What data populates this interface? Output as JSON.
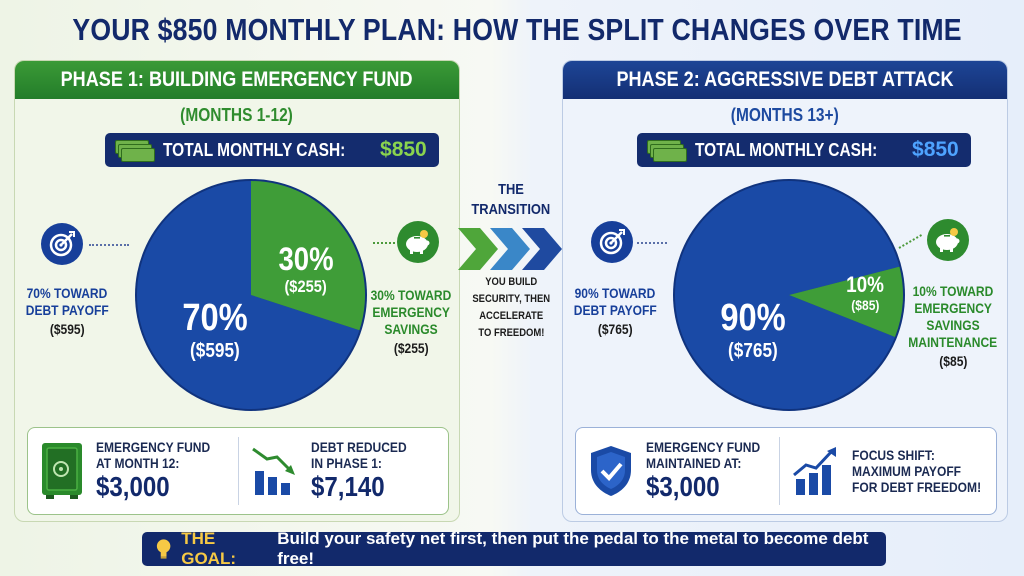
{
  "title": "YOUR $850 MONTHLY PLAN: HOW THE SPLIT CHANGES OVER TIME",
  "phase1": {
    "header": "PHASE 1: BUILDING EMERGENCY FUND",
    "subheader": "(MONTHS 1-12)",
    "cash_label": "TOTAL MONTHLY CASH:",
    "cash_amount": "$850",
    "pie": {
      "slices": [
        {
          "percent": 70,
          "pct_label": "70%",
          "amount": "($595)",
          "color": "#1a4aa6"
        },
        {
          "percent": 30,
          "pct_label": "30%",
          "amount": "($255)",
          "color": "#3f9d38"
        }
      ]
    },
    "left_label": {
      "line1": "70% TOWARD",
      "line2": "DEBT PAYOFF",
      "value": "($595)"
    },
    "right_label": {
      "line1": "30% TOWARD",
      "line2": "EMERGENCY",
      "line3": "SAVINGS",
      "value": "($255)"
    },
    "stat1": {
      "label1": "EMERGENCY FUND",
      "label2": "AT MONTH 12:",
      "value": "$3,000",
      "icon": "safe-icon"
    },
    "stat2": {
      "label1": "DEBT REDUCED",
      "label2": "IN PHASE 1:",
      "value": "$7,140",
      "icon": "bar-chart-down-icon"
    }
  },
  "transition": {
    "title1": "THE",
    "title2": "TRANSITION",
    "desc1": "YOU BUILD",
    "desc2": "SECURITY, THEN",
    "desc3": "ACCELERATE",
    "desc4": "TO FREEDOM!"
  },
  "phase2": {
    "header": "PHASE 2: AGGRESSIVE DEBT ATTACK",
    "subheader": "(MONTHS 13+)",
    "cash_label": "TOTAL MONTHLY CASH:",
    "cash_amount": "$850",
    "pie": {
      "slices": [
        {
          "percent": 90,
          "pct_label": "90%",
          "amount": "($765)",
          "color": "#1a4aa6"
        },
        {
          "percent": 10,
          "pct_label": "10%",
          "amount": "($85)",
          "color": "#3f9d38"
        }
      ]
    },
    "left_label": {
      "line1": "90% TOWARD",
      "line2": "DEBT PAYOFF",
      "value": "($765)"
    },
    "right_label": {
      "line1": "10% TOWARD",
      "line2": "EMERGENCY",
      "line3": "SAVINGS",
      "line4": "MAINTENANCE",
      "value": "($85)"
    },
    "stat1": {
      "label1": "EMERGENCY FUND",
      "label2": "MAINTAINED AT:",
      "value": "$3,000",
      "icon": "shield-check-icon"
    },
    "stat2": {
      "label1": "FOCUS SHIFT:",
      "label2": "MAXIMUM PAYOFF",
      "label3": "FOR DEBT FREEDOM!",
      "icon": "bar-chart-up-icon"
    }
  },
  "goal": {
    "label": "THE GOAL:",
    "text": "Build your safety net first, then put the pedal to the metal to become debt free!",
    "icon": "lightbulb-icon"
  },
  "colors": {
    "navy": "#12296b",
    "blue": "#1a4aa6",
    "green": "#3f9d38",
    "accent_green": "#8ad44e",
    "accent_blue": "#4ea3ff",
    "goal_yellow": "#f6c945"
  }
}
